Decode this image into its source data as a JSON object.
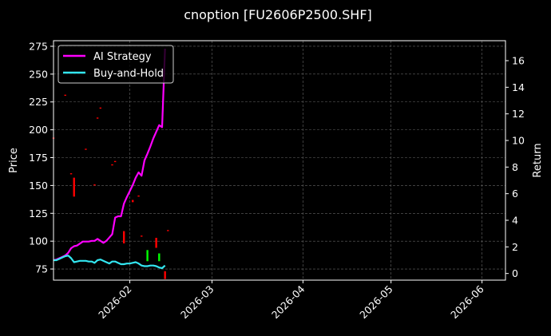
{
  "chart_data": {
    "type": "line",
    "title": "cnoption [FU2606P2500.SHF]",
    "ylabel": "Price",
    "y2label": "Return",
    "ylim": [
      65,
      280
    ],
    "y2lim": [
      -0.5,
      17.5
    ],
    "xlim": [
      "2026-01-06",
      "2026-06-09"
    ],
    "x_ticks": [
      "2026-02",
      "2026-03",
      "2026-04",
      "2026-05",
      "2026-06"
    ],
    "x_tick_dates": [
      "2026-02-01",
      "2026-03-01",
      "2026-04-01",
      "2026-05-01",
      "2026-06-01"
    ],
    "y_ticks": [
      75,
      100,
      125,
      150,
      175,
      200,
      225,
      250,
      275
    ],
    "y2_ticks": [
      0,
      2,
      4,
      6,
      8,
      10,
      12,
      14,
      16
    ],
    "grid": true,
    "legend": "top-left",
    "series": [
      {
        "name": "AI Strategy",
        "axis": "right",
        "color": "#ff00ff",
        "points": [
          [
            "2026-01-06",
            1.0
          ],
          [
            "2026-01-07",
            1.05
          ],
          [
            "2026-01-08",
            1.15
          ],
          [
            "2026-01-09",
            1.25
          ],
          [
            "2026-01-10",
            1.35
          ],
          [
            "2026-01-11",
            1.55
          ],
          [
            "2026-01-12",
            1.9
          ],
          [
            "2026-01-13",
            2.05
          ],
          [
            "2026-01-14",
            2.1
          ],
          [
            "2026-01-15",
            2.25
          ],
          [
            "2026-01-16",
            2.4
          ],
          [
            "2026-01-17",
            2.4
          ],
          [
            "2026-01-18",
            2.4
          ],
          [
            "2026-01-19",
            2.45
          ],
          [
            "2026-01-20",
            2.45
          ],
          [
            "2026-01-21",
            2.6
          ],
          [
            "2026-01-22",
            2.45
          ],
          [
            "2026-01-23",
            2.3
          ],
          [
            "2026-01-24",
            2.45
          ],
          [
            "2026-01-25",
            2.7
          ],
          [
            "2026-01-26",
            2.95
          ],
          [
            "2026-01-27",
            4.2
          ],
          [
            "2026-01-28",
            4.3
          ],
          [
            "2026-01-29",
            4.3
          ],
          [
            "2026-01-30",
            5.25
          ],
          [
            "2026-01-31",
            5.75
          ],
          [
            "2026-02-01",
            6.2
          ],
          [
            "2026-02-02",
            6.65
          ],
          [
            "2026-02-03",
            7.2
          ],
          [
            "2026-02-04",
            7.6
          ],
          [
            "2026-02-05",
            7.35
          ],
          [
            "2026-02-06",
            8.5
          ],
          [
            "2026-02-07",
            9.0
          ],
          [
            "2026-02-08",
            9.55
          ],
          [
            "2026-02-09",
            10.15
          ],
          [
            "2026-02-10",
            10.65
          ],
          [
            "2026-02-11",
            11.15
          ],
          [
            "2026-02-12",
            11.0
          ],
          [
            "2026-02-13",
            16.9
          ]
        ]
      },
      {
        "name": "Buy-and-Hold",
        "axis": "right",
        "color": "#33e6f0",
        "points": [
          [
            "2026-01-06",
            1.0
          ],
          [
            "2026-01-07",
            1.0
          ],
          [
            "2026-01-08",
            1.1
          ],
          [
            "2026-01-09",
            1.2
          ],
          [
            "2026-01-10",
            1.3
          ],
          [
            "2026-01-11",
            1.35
          ],
          [
            "2026-01-12",
            1.15
          ],
          [
            "2026-01-13",
            0.85
          ],
          [
            "2026-01-14",
            0.9
          ],
          [
            "2026-01-15",
            0.95
          ],
          [
            "2026-01-16",
            0.95
          ],
          [
            "2026-01-17",
            0.95
          ],
          [
            "2026-01-18",
            0.9
          ],
          [
            "2026-01-19",
            0.9
          ],
          [
            "2026-01-20",
            0.8
          ],
          [
            "2026-01-21",
            1.0
          ],
          [
            "2026-01-22",
            1.05
          ],
          [
            "2026-01-23",
            0.95
          ],
          [
            "2026-01-24",
            0.85
          ],
          [
            "2026-01-25",
            0.75
          ],
          [
            "2026-01-26",
            0.9
          ],
          [
            "2026-01-27",
            0.9
          ],
          [
            "2026-01-28",
            0.8
          ],
          [
            "2026-01-29",
            0.7
          ],
          [
            "2026-01-30",
            0.7
          ],
          [
            "2026-01-31",
            0.75
          ],
          [
            "2026-02-01",
            0.75
          ],
          [
            "2026-02-02",
            0.8
          ],
          [
            "2026-02-03",
            0.85
          ],
          [
            "2026-02-04",
            0.75
          ],
          [
            "2026-02-05",
            0.6
          ],
          [
            "2026-02-06",
            0.55
          ],
          [
            "2026-02-07",
            0.55
          ],
          [
            "2026-02-08",
            0.6
          ],
          [
            "2026-02-09",
            0.6
          ],
          [
            "2026-02-10",
            0.55
          ],
          [
            "2026-02-11",
            0.45
          ],
          [
            "2026-02-12",
            0.4
          ],
          [
            "2026-02-13",
            0.6
          ]
        ]
      }
    ],
    "candles": {
      "axis": "left",
      "up_color": "#00ff00",
      "down_color": "#ff0000",
      "items": [
        {
          "date": "2026-01-06",
          "high": 193,
          "low": 192,
          "dir": "down"
        },
        {
          "date": "2026-01-10",
          "high": 231.5,
          "low": 230.5,
          "dir": "down"
        },
        {
          "date": "2026-01-12",
          "high": 161,
          "low": 160,
          "dir": "down"
        },
        {
          "date": "2026-01-13",
          "high": 157,
          "low": 140,
          "dir": "down"
        },
        {
          "date": "2026-01-17",
          "high": 183,
          "low": 182,
          "dir": "down"
        },
        {
          "date": "2026-01-20",
          "high": 151,
          "low": 150,
          "dir": "down"
        },
        {
          "date": "2026-01-21",
          "high": 211,
          "low": 210,
          "dir": "down"
        },
        {
          "date": "2026-01-22",
          "high": 220,
          "low": 219,
          "dir": "down"
        },
        {
          "date": "2026-01-26",
          "high": 169,
          "low": 168,
          "dir": "down"
        },
        {
          "date": "2026-01-27",
          "high": 172,
          "low": 171,
          "dir": "down"
        },
        {
          "date": "2026-01-30",
          "high": 109,
          "low": 98,
          "dir": "down"
        },
        {
          "date": "2026-02-02",
          "high": 137,
          "low": 135,
          "dir": "down"
        },
        {
          "date": "2026-02-04",
          "high": 141,
          "low": 140,
          "dir": "down"
        },
        {
          "date": "2026-02-05",
          "high": 105,
          "low": 104,
          "dir": "down"
        },
        {
          "date": "2026-02-07",
          "high": 92,
          "low": 82,
          "dir": "up"
        },
        {
          "date": "2026-02-10",
          "high": 103,
          "low": 94,
          "dir": "down"
        },
        {
          "date": "2026-02-11",
          "high": 89,
          "low": 82,
          "dir": "up"
        },
        {
          "date": "2026-02-13",
          "high": 73,
          "low": 66,
          "dir": "down"
        },
        {
          "date": "2026-02-14",
          "high": 110,
          "low": 109,
          "dir": "down"
        }
      ]
    }
  }
}
